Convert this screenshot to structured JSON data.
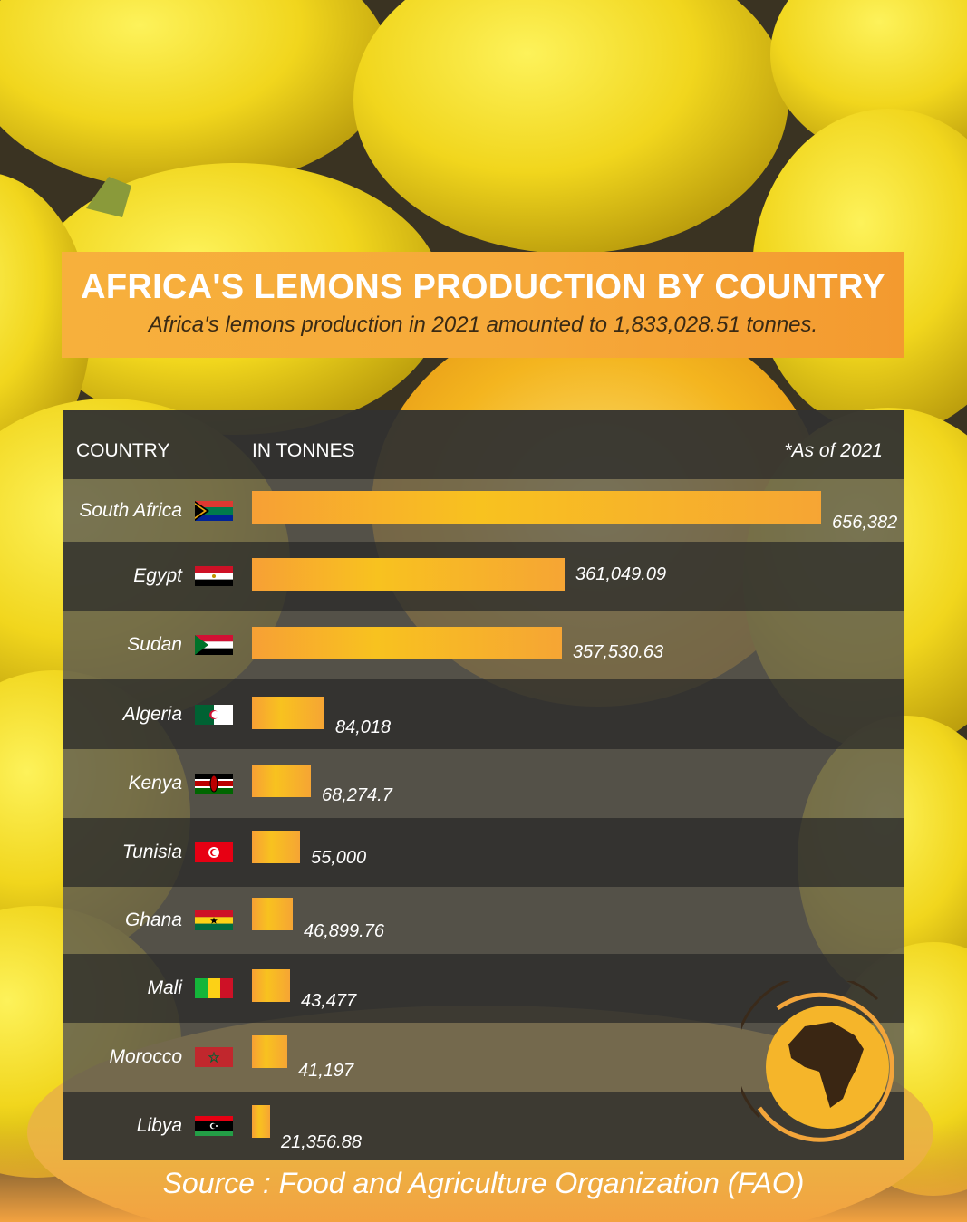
{
  "title": "AFRICA'S LEMONS PRODUCTION BY COUNTRY",
  "subtitle": "Africa's lemons production in 2021 amounted to 1,833,028.51 tonnes.",
  "table_header": {
    "country": "COUNTRY",
    "unit": "IN TONNES",
    "as_of": "*As of 2021"
  },
  "source": "Source :   Food and Agriculture Organization (FAO)",
  "colors": {
    "title_bar": "#f6a93a",
    "bar_start": "#f7a035",
    "bar_mid": "#f8c21f",
    "row_dark": "#343432",
    "row_light": "#5a5850"
  },
  "chart_data": {
    "type": "bar",
    "orientation": "horizontal",
    "title": "AFRICA'S LEMONS PRODUCTION BY COUNTRY",
    "categories": [
      "South Africa",
      "Egypt",
      "Sudan",
      "Algeria",
      "Kenya",
      "Tunisia",
      "Ghana",
      "Mali",
      "Morocco",
      "Libya"
    ],
    "values": [
      656382,
      361049.09,
      357530.63,
      84018,
      68274.7,
      55000,
      46899.76,
      43477,
      41197,
      21356.88
    ],
    "labels": [
      "656,382",
      "361,049.09",
      "357,530.63",
      "84,018",
      "68,274.7",
      "55,000",
      "46,899.76",
      "43,477",
      "41,197",
      "21,356.88"
    ],
    "flags": [
      "south-africa-flag",
      "egypt-flag",
      "sudan-flag",
      "algeria-flag",
      "kenya-flag",
      "tunisia-flag",
      "ghana-flag",
      "mali-flag",
      "morocco-flag",
      "libya-flag"
    ],
    "xlabel": "IN TONNES",
    "ylabel": "COUNTRY",
    "grid": false,
    "legend": "none"
  }
}
